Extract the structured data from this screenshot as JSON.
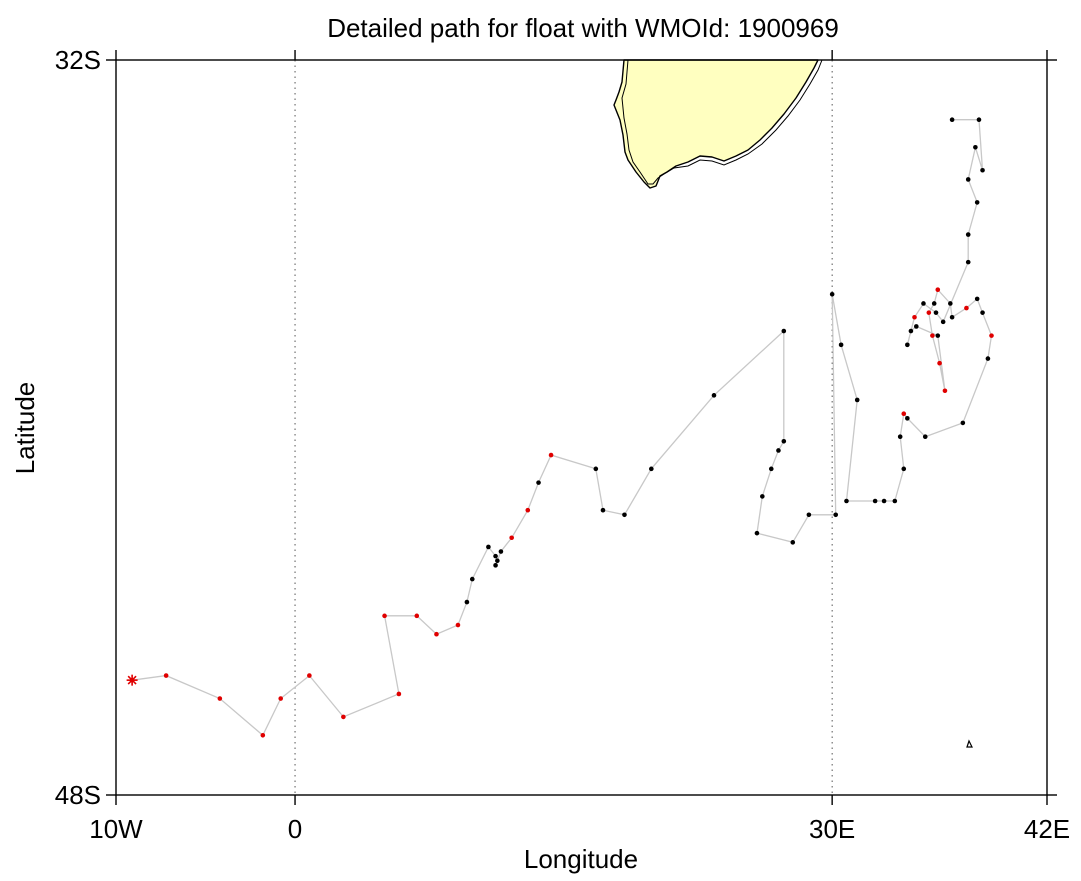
{
  "chart_data": {
    "type": "scatter",
    "title": "Detailed path for float with WMOId: 1900969",
    "xlabel": "Longitude",
    "ylabel": "Latitude",
    "xlim": [
      -10,
      42
    ],
    "ylim": [
      -48,
      -32
    ],
    "x_ticks": [
      {
        "value": -10,
        "label": "10W"
      },
      {
        "value": 0,
        "label": "0"
      },
      {
        "value": 30,
        "label": "30E"
      },
      {
        "value": 42,
        "label": "42E"
      }
    ],
    "y_ticks": [
      {
        "value": -32,
        "label": "32S"
      },
      {
        "value": -48,
        "label": "48S"
      }
    ],
    "meridians": [
      0,
      30
    ],
    "grid": false,
    "colors": {
      "land": "#ffffc0",
      "coast": "#000000",
      "track": "#c8c8c8",
      "profile_normal": "#000000",
      "profile_flagged": "#e00000",
      "start_marker": "#e00000"
    },
    "start_marker": {
      "lon": -9.1,
      "lat": -45.5,
      "symbol": "asterisk"
    },
    "track": [
      {
        "lon": -9.1,
        "lat": -45.5,
        "flag": "red"
      },
      {
        "lon": -7.2,
        "lat": -45.4,
        "flag": "red"
      },
      {
        "lon": -4.2,
        "lat": -45.9,
        "flag": "red"
      },
      {
        "lon": -1.8,
        "lat": -46.7,
        "flag": "red"
      },
      {
        "lon": -0.8,
        "lat": -45.9,
        "flag": "red"
      },
      {
        "lon": 0.8,
        "lat": -45.4,
        "flag": "red"
      },
      {
        "lon": 2.7,
        "lat": -46.3,
        "flag": "red"
      },
      {
        "lon": 5.8,
        "lat": -45.8,
        "flag": "red"
      },
      {
        "lon": 5.0,
        "lat": -44.1,
        "flag": "red"
      },
      {
        "lon": 6.8,
        "lat": -44.1,
        "flag": "red"
      },
      {
        "lon": 7.9,
        "lat": -44.5,
        "flag": "red"
      },
      {
        "lon": 9.1,
        "lat": -44.3,
        "flag": "red"
      },
      {
        "lon": 9.6,
        "lat": -43.8,
        "flag": "black"
      },
      {
        "lon": 9.9,
        "lat": -43.3,
        "flag": "black"
      },
      {
        "lon": 10.8,
        "lat": -42.6,
        "flag": "black"
      },
      {
        "lon": 11.2,
        "lat": -42.8,
        "flag": "black"
      },
      {
        "lon": 11.3,
        "lat": -42.9,
        "flag": "black"
      },
      {
        "lon": 11.2,
        "lat": -43.0,
        "flag": "black"
      },
      {
        "lon": 11.5,
        "lat": -42.7,
        "flag": "black"
      },
      {
        "lon": 12.1,
        "lat": -42.4,
        "flag": "red"
      },
      {
        "lon": 13.0,
        "lat": -41.8,
        "flag": "red"
      },
      {
        "lon": 13.6,
        "lat": -41.2,
        "flag": "black"
      },
      {
        "lon": 14.3,
        "lat": -40.6,
        "flag": "red"
      },
      {
        "lon": 16.8,
        "lat": -40.9,
        "flag": "black"
      },
      {
        "lon": 17.2,
        "lat": -41.8,
        "flag": "black"
      },
      {
        "lon": 18.4,
        "lat": -41.9,
        "flag": "black"
      },
      {
        "lon": 19.9,
        "lat": -40.9,
        "flag": "black"
      },
      {
        "lon": 23.4,
        "lat": -39.3,
        "flag": "black"
      },
      {
        "lon": 27.3,
        "lat": -37.9,
        "flag": "black"
      },
      {
        "lon": 27.3,
        "lat": -40.3,
        "flag": "black"
      },
      {
        "lon": 27.0,
        "lat": -40.5,
        "flag": "black"
      },
      {
        "lon": 26.6,
        "lat": -40.9,
        "flag": "black"
      },
      {
        "lon": 26.1,
        "lat": -41.5,
        "flag": "black"
      },
      {
        "lon": 25.8,
        "lat": -42.3,
        "flag": "black"
      },
      {
        "lon": 27.8,
        "lat": -42.5,
        "flag": "black"
      },
      {
        "lon": 28.7,
        "lat": -41.9,
        "flag": "black"
      },
      {
        "lon": 30.2,
        "lat": -41.9,
        "flag": "black"
      },
      {
        "lon": 30.0,
        "lat": -37.1,
        "flag": "black"
      },
      {
        "lon": 30.5,
        "lat": -38.2,
        "flag": "black"
      },
      {
        "lon": 31.4,
        "lat": -39.4,
        "flag": "black"
      },
      {
        "lon": 30.8,
        "lat": -41.6,
        "flag": "black"
      },
      {
        "lon": 32.4,
        "lat": -41.6,
        "flag": "black"
      },
      {
        "lon": 32.9,
        "lat": -41.6,
        "flag": "black"
      },
      {
        "lon": 33.5,
        "lat": -41.6,
        "flag": "black"
      },
      {
        "lon": 34.0,
        "lat": -40.9,
        "flag": "black"
      },
      {
        "lon": 33.8,
        "lat": -40.2,
        "flag": "black"
      },
      {
        "lon": 34.0,
        "lat": -39.7,
        "flag": "red"
      },
      {
        "lon": 34.2,
        "lat": -39.8,
        "flag": "black"
      },
      {
        "lon": 35.2,
        "lat": -40.2,
        "flag": "black"
      },
      {
        "lon": 37.3,
        "lat": -39.9,
        "flag": "black"
      },
      {
        "lon": 38.7,
        "lat": -38.5,
        "flag": "black"
      },
      {
        "lon": 38.9,
        "lat": -38.0,
        "flag": "red"
      },
      {
        "lon": 38.4,
        "lat": -37.5,
        "flag": "black"
      },
      {
        "lon": 38.1,
        "lat": -37.2,
        "flag": "black"
      },
      {
        "lon": 37.5,
        "lat": -37.4,
        "flag": "red"
      },
      {
        "lon": 36.7,
        "lat": -37.6,
        "flag": "black"
      },
      {
        "lon": 36.6,
        "lat": -37.3,
        "flag": "black"
      },
      {
        "lon": 35.9,
        "lat": -37.0,
        "flag": "red"
      },
      {
        "lon": 35.7,
        "lat": -37.3,
        "flag": "black"
      },
      {
        "lon": 35.4,
        "lat": -37.5,
        "flag": "red"
      },
      {
        "lon": 35.6,
        "lat": -38.0,
        "flag": "red"
      },
      {
        "lon": 36.0,
        "lat": -38.6,
        "flag": "red"
      },
      {
        "lon": 36.3,
        "lat": -39.2,
        "flag": "red"
      },
      {
        "lon": 35.9,
        "lat": -38.0,
        "flag": "black"
      },
      {
        "lon": 34.7,
        "lat": -37.8,
        "flag": "black"
      },
      {
        "lon": 34.4,
        "lat": -37.9,
        "flag": "black"
      },
      {
        "lon": 34.2,
        "lat": -38.2,
        "flag": "black"
      },
      {
        "lon": 34.6,
        "lat": -37.6,
        "flag": "red"
      },
      {
        "lon": 35.1,
        "lat": -37.3,
        "flag": "black"
      },
      {
        "lon": 35.8,
        "lat": -37.5,
        "flag": "black"
      },
      {
        "lon": 36.2,
        "lat": -37.7,
        "flag": "black"
      },
      {
        "lon": 37.6,
        "lat": -36.4,
        "flag": "black"
      },
      {
        "lon": 37.6,
        "lat": -35.8,
        "flag": "black"
      },
      {
        "lon": 38.1,
        "lat": -35.1,
        "flag": "black"
      },
      {
        "lon": 37.6,
        "lat": -34.6,
        "flag": "black"
      },
      {
        "lon": 38.0,
        "lat": -33.9,
        "flag": "black"
      },
      {
        "lon": 38.4,
        "lat": -34.4,
        "flag": "black"
      },
      {
        "lon": 38.2,
        "lat": -33.3,
        "flag": "black"
      },
      {
        "lon": 36.7,
        "lat": -33.3,
        "flag": "black"
      }
    ]
  }
}
